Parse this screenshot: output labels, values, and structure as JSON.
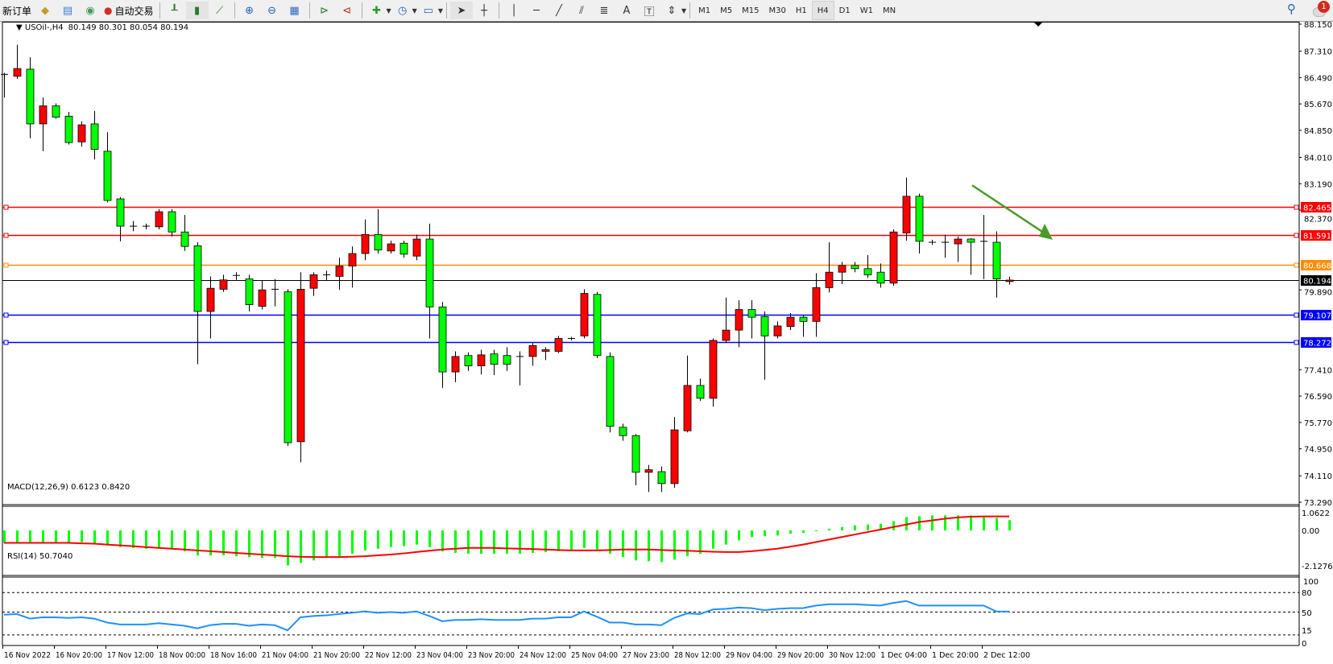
{
  "toolbar": {
    "new_order_label": "新订单",
    "auto_trading_label": "自动交易",
    "icons": [
      "market-watch-icon",
      "data-window-icon",
      "signals-icon",
      "auto-trading-icon",
      "bar-chart-icon",
      "candlestick-icon",
      "line-chart-icon",
      "zoom-in-icon",
      "zoom-out-icon",
      "tile-windows-icon",
      "chart-shift-icon",
      "auto-scroll-icon",
      "indicators-icon",
      "periods-icon",
      "templates-icon",
      "cursor-icon",
      "crosshair-icon",
      "vertical-line-icon",
      "horizontal-line-icon",
      "trendline-icon",
      "equidistant-channel-icon",
      "fibonacci-icon",
      "text-icon",
      "text-label-icon",
      "arrows-icon"
    ],
    "text_tool_label": "A",
    "timeframes": [
      "M1",
      "M5",
      "M15",
      "M30",
      "H1",
      "H4",
      "D1",
      "W1",
      "MN"
    ],
    "active_timeframe": "H4",
    "notification_count": "1"
  },
  "chart": {
    "legend": "USOil-,H4",
    "ohlc_text": "80.149 80.301 80.054 80.194",
    "colors": {
      "bull": "#ff0000",
      "bear": "#00ff00",
      "doji": "#000000",
      "wick": "#000000"
    },
    "price_axis_labels": [
      "88.150",
      "87.310",
      "86.490",
      "85.670",
      "84.850",
      "84.010",
      "83.190",
      "82.370",
      "79.890",
      "77.410",
      "76.590",
      "75.770",
      "74.950",
      "74.110",
      "73.290"
    ],
    "price_range": [
      73.29,
      88.15
    ],
    "bid_price": {
      "value": 80.194,
      "label": "80.194",
      "color": "#000000"
    },
    "horizontal_lines": [
      {
        "value": 82.465,
        "label": "82.465",
        "color": "#ff0000"
      },
      {
        "value": 81.591,
        "label": "81.591",
        "color": "#ff0000"
      },
      {
        "value": 80.668,
        "label": "80.668",
        "color": "#ff8c00"
      },
      {
        "value": 79.107,
        "label": "79.107",
        "color": "#0000ff"
      },
      {
        "value": 78.272,
        "label": "78.272",
        "color": "#0000ff"
      }
    ],
    "arrow_color": "#4a9a2a",
    "candles": [
      [
        86.59,
        86.64,
        85.87,
        86.59
      ],
      [
        86.53,
        87.51,
        86.45,
        86.77
      ],
      [
        86.75,
        87.12,
        84.6,
        85.05
      ],
      [
        85.05,
        85.87,
        84.2,
        85.61
      ],
      [
        85.61,
        85.69,
        85.21,
        85.26
      ],
      [
        85.29,
        85.42,
        84.41,
        84.47
      ],
      [
        84.49,
        85.13,
        84.34,
        85.02
      ],
      [
        85.05,
        85.45,
        83.94,
        84.26
      ],
      [
        84.2,
        84.79,
        82.61,
        82.67
      ],
      [
        82.72,
        82.77,
        81.4,
        81.87
      ],
      [
        81.87,
        82.03,
        81.71,
        81.87
      ],
      [
        81.87,
        81.95,
        81.77,
        81.87
      ],
      [
        81.85,
        82.4,
        81.77,
        82.32
      ],
      [
        82.32,
        82.4,
        81.55,
        81.69
      ],
      [
        81.69,
        82.22,
        81.1,
        81.24
      ],
      [
        81.26,
        81.37,
        77.58,
        79.22
      ],
      [
        79.22,
        80.31,
        78.38,
        79.94
      ],
      [
        79.91,
        80.36,
        79.83,
        80.2
      ],
      [
        80.34,
        80.44,
        80.2,
        80.34
      ],
      [
        80.23,
        80.36,
        79.22,
        79.43
      ],
      [
        79.38,
        80.18,
        79.28,
        79.89
      ],
      [
        79.91,
        80.23,
        79.38,
        79.91
      ],
      [
        79.83,
        79.91,
        75.04,
        75.14
      ],
      [
        75.17,
        80.44,
        74.53,
        79.91
      ],
      [
        79.94,
        80.44,
        79.7,
        80.36
      ],
      [
        80.36,
        80.49,
        80.18,
        80.36
      ],
      [
        80.31,
        80.89,
        79.89,
        80.63
      ],
      [
        80.63,
        81.24,
        79.96,
        81.02
      ],
      [
        81.02,
        82.08,
        80.81,
        81.61
      ],
      [
        81.61,
        82.4,
        81.02,
        81.13
      ],
      [
        81.1,
        81.42,
        81.02,
        81.32
      ],
      [
        81.34,
        81.42,
        80.89,
        81.0
      ],
      [
        80.94,
        81.61,
        80.81,
        81.47
      ],
      [
        81.47,
        81.95,
        78.38,
        79.36
      ],
      [
        79.36,
        79.51,
        76.84,
        77.34
      ],
      [
        77.34,
        77.98,
        77.02,
        77.82
      ],
      [
        77.85,
        77.95,
        77.37,
        77.53
      ],
      [
        77.53,
        78.03,
        77.26,
        77.87
      ],
      [
        77.9,
        78.03,
        77.24,
        77.58
      ],
      [
        77.85,
        78.11,
        77.37,
        77.58
      ],
      [
        77.82,
        77.98,
        76.92,
        77.82
      ],
      [
        77.82,
        78.24,
        77.53,
        78.16
      ],
      [
        77.98,
        78.11,
        77.71,
        78.03
      ],
      [
        77.98,
        78.46,
        77.93,
        78.38
      ],
      [
        78.38,
        78.43,
        78.32,
        78.38
      ],
      [
        78.46,
        79.91,
        78.38,
        79.78
      ],
      [
        79.75,
        79.83,
        77.77,
        77.85
      ],
      [
        77.82,
        77.95,
        75.46,
        75.65
      ],
      [
        75.62,
        75.73,
        75.2,
        75.36
      ],
      [
        75.36,
        75.41,
        73.82,
        74.22
      ],
      [
        74.22,
        74.45,
        73.61,
        74.3
      ],
      [
        74.24,
        74.4,
        73.61,
        73.87
      ],
      [
        73.87,
        75.94,
        73.74,
        75.54
      ],
      [
        75.51,
        77.85,
        75.46,
        76.92
      ],
      [
        76.92,
        77.13,
        76.44,
        76.52
      ],
      [
        76.52,
        78.38,
        76.26,
        78.32
      ],
      [
        78.32,
        79.65,
        78.24,
        78.64
      ],
      [
        78.64,
        79.57,
        78.11,
        79.28
      ],
      [
        79.28,
        79.57,
        78.38,
        79.04
      ],
      [
        79.06,
        79.22,
        77.1,
        78.46
      ],
      [
        78.46,
        78.91,
        78.38,
        78.77
      ],
      [
        78.75,
        79.17,
        78.64,
        79.04
      ],
      [
        79.04,
        79.12,
        78.43,
        78.91
      ],
      [
        78.91,
        80.41,
        78.43,
        79.96
      ],
      [
        79.96,
        81.37,
        79.81,
        80.44
      ],
      [
        80.44,
        80.76,
        80.07,
        80.65
      ],
      [
        80.65,
        80.76,
        80.44,
        80.55
      ],
      [
        80.55,
        80.97,
        80.26,
        80.36
      ],
      [
        80.44,
        80.71,
        79.96,
        80.1
      ],
      [
        80.1,
        81.77,
        80.02,
        81.69
      ],
      [
        81.66,
        83.38,
        81.42,
        82.8
      ],
      [
        82.8,
        82.88,
        81.02,
        81.4
      ],
      [
        81.37,
        81.45,
        81.29,
        81.37
      ],
      [
        81.37,
        81.61,
        80.89,
        81.37
      ],
      [
        81.32,
        81.55,
        80.76,
        81.47
      ],
      [
        81.47,
        81.5,
        80.36,
        81.37
      ],
      [
        81.4,
        82.22,
        80.23,
        81.4
      ],
      [
        81.37,
        81.71,
        79.65,
        80.23
      ],
      [
        80.149,
        80.301,
        80.054,
        80.194
      ]
    ]
  },
  "macd": {
    "label": "MACD(12,26,9) 0.6123 0.8420",
    "axis_labels": [
      "1.0622",
      "0.00",
      "-2.1276"
    ],
    "range": [
      -2.1276,
      1.0622
    ],
    "hist_color": "#00ff00",
    "signal_color": "#ff0000",
    "histogram": [
      -0.75,
      -0.7,
      -0.75,
      -0.7,
      -0.7,
      -0.75,
      -0.7,
      -0.75,
      -0.9,
      -1.0,
      -1.05,
      -1.1,
      -1.1,
      -1.15,
      -1.25,
      -1.5,
      -1.5,
      -1.5,
      -1.55,
      -1.6,
      -1.65,
      -1.65,
      -2.1,
      -1.95,
      -1.8,
      -1.65,
      -1.55,
      -1.4,
      -1.2,
      -1.1,
      -1.0,
      -0.95,
      -0.85,
      -1.0,
      -1.25,
      -1.35,
      -1.4,
      -1.4,
      -1.4,
      -1.4,
      -1.4,
      -1.35,
      -1.3,
      -1.25,
      -1.2,
      -1.05,
      -1.15,
      -1.4,
      -1.6,
      -1.8,
      -1.85,
      -1.9,
      -1.75,
      -1.55,
      -1.4,
      -1.1,
      -0.85,
      -0.6,
      -0.4,
      -0.35,
      -0.3,
      -0.2,
      -0.15,
      -0.05,
      0.1,
      0.2,
      0.3,
      0.35,
      0.4,
      0.55,
      0.8,
      0.85,
      0.9,
      0.9,
      0.9,
      0.9,
      0.85,
      0.75,
      0.6123
    ],
    "signal": [
      -0.75,
      -0.75,
      -0.75,
      -0.75,
      -0.75,
      -0.75,
      -0.78,
      -0.8,
      -0.85,
      -0.9,
      -0.95,
      -1.0,
      -1.05,
      -1.1,
      -1.15,
      -1.2,
      -1.25,
      -1.3,
      -1.35,
      -1.4,
      -1.45,
      -1.5,
      -1.55,
      -1.58,
      -1.6,
      -1.6,
      -1.6,
      -1.58,
      -1.55,
      -1.5,
      -1.45,
      -1.38,
      -1.3,
      -1.22,
      -1.15,
      -1.1,
      -1.05,
      -1.05,
      -1.05,
      -1.08,
      -1.1,
      -1.12,
      -1.15,
      -1.18,
      -1.2,
      -1.2,
      -1.2,
      -1.18,
      -1.15,
      -1.15,
      -1.15,
      -1.18,
      -1.2,
      -1.22,
      -1.25,
      -1.28,
      -1.3,
      -1.3,
      -1.25,
      -1.18,
      -1.1,
      -0.98,
      -0.85,
      -0.7,
      -0.55,
      -0.4,
      -0.25,
      -0.1,
      0.05,
      0.2,
      0.35,
      0.5,
      0.6,
      0.7,
      0.78,
      0.82,
      0.84,
      0.84,
      0.842
    ]
  },
  "rsi": {
    "label": "RSI(14) 50.7040",
    "axis_labels": [
      "100",
      "80",
      "50",
      "15",
      "0"
    ],
    "levels": [
      80,
      50,
      15
    ],
    "line_color": "#1e90ff",
    "values": [
      46,
      47,
      40,
      42,
      42,
      41,
      42,
      40,
      34,
      31,
      31,
      31,
      33,
      31,
      29,
      25,
      30,
      32,
      32,
      29,
      31,
      30,
      22,
      42,
      44,
      45,
      47,
      49,
      51,
      49,
      50,
      49,
      51,
      44,
      36,
      38,
      38,
      39,
      38,
      38,
      38,
      40,
      40,
      42,
      42,
      51,
      43,
      34,
      34,
      31,
      31,
      30,
      41,
      48,
      47,
      54,
      55,
      57,
      56,
      53,
      55,
      56,
      56,
      60,
      62,
      62,
      62,
      61,
      60,
      64,
      67,
      60,
      60,
      60,
      60,
      60,
      60,
      51,
      50.704
    ]
  },
  "time_axis": {
    "labels": [
      "16 Nov 2022",
      "16 Nov 20:00",
      "17 Nov 12:00",
      "18 Nov 00:00",
      "18 Nov 16:00",
      "21 Nov 04:00",
      "21 Nov 20:00",
      "22 Nov 12:00",
      "23 Nov 04:00",
      "23 Nov 20:00",
      "24 Nov 12:00",
      "25 Nov 04:00",
      "27 Nov 23:00",
      "28 Nov 12:00",
      "29 Nov 04:00",
      "29 Nov 20:00",
      "30 Nov 12:00",
      "1 Dec 04:00",
      "1 Dec 20:00",
      "2 Dec 12:00"
    ]
  }
}
